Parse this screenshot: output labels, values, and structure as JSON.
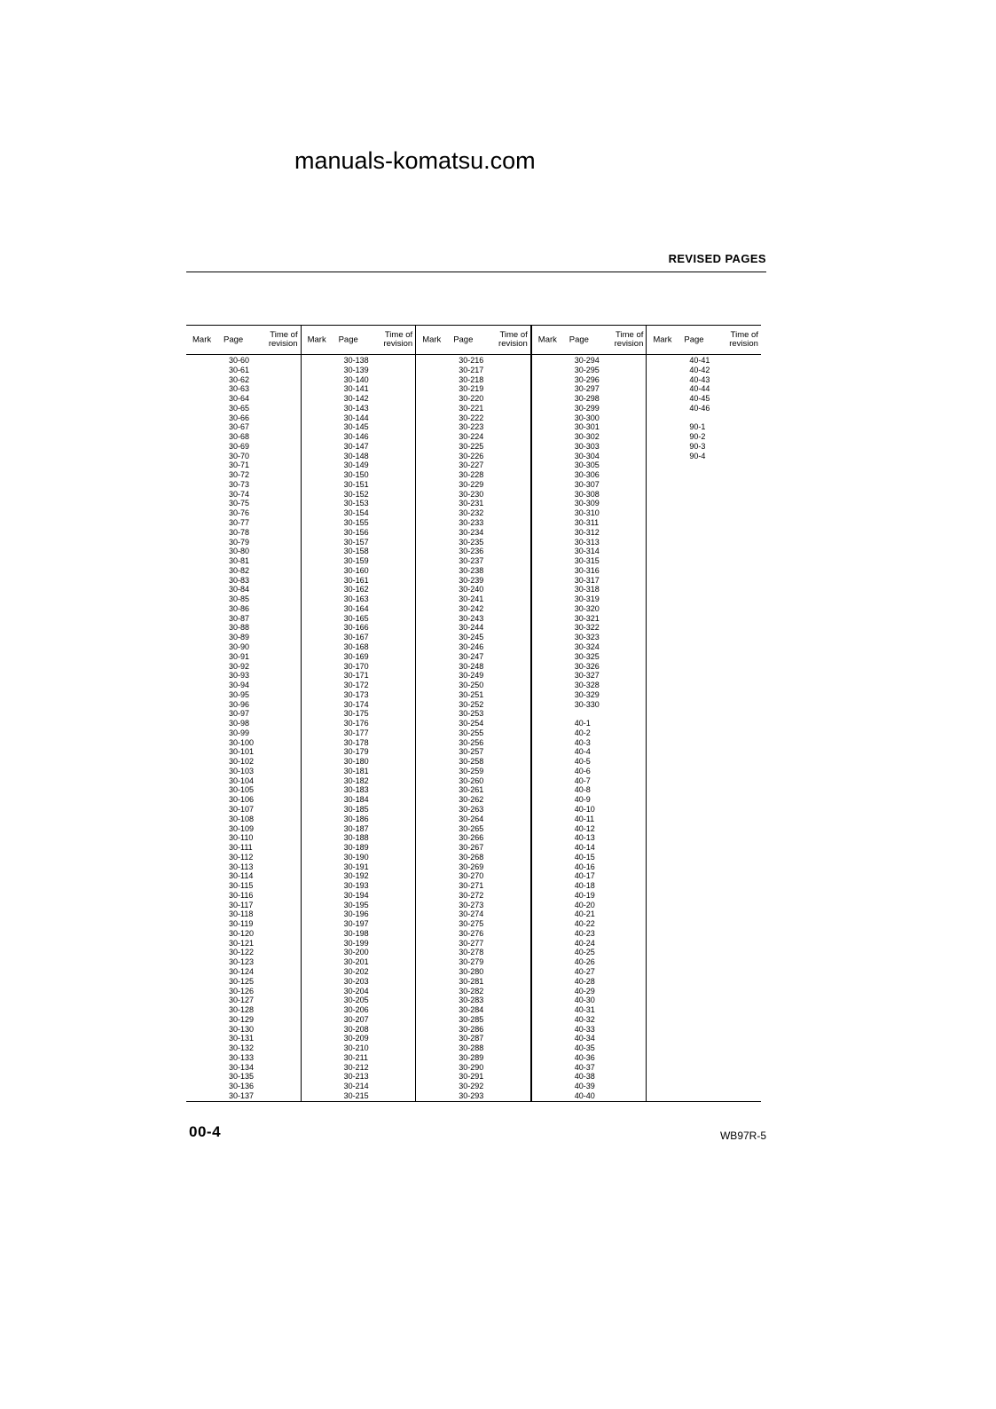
{
  "watermark": {
    "text": "manuals-komatsu.com"
  },
  "header": {
    "title": "REVISED PAGES"
  },
  "table": {
    "column_headers": {
      "mark": "Mark",
      "page": "Page",
      "time_line1": "Time of",
      "time_line2": "revision"
    },
    "columns": [
      {
        "pages": [
          "30-60",
          "30-61",
          "30-62",
          "30-63",
          "30-64",
          "30-65",
          "30-66",
          "30-67",
          "30-68",
          "30-69",
          "30-70",
          "30-71",
          "30-72",
          "30-73",
          "30-74",
          "30-75",
          "30-76",
          "30-77",
          "30-78",
          "30-79",
          "30-80",
          "30-81",
          "30-82",
          "30-83",
          "30-84",
          "30-85",
          "30-86",
          "30-87",
          "30-88",
          "30-89",
          "30-90",
          "30-91",
          "30-92",
          "30-93",
          "30-94",
          "30-95",
          "30-96",
          "30-97",
          "30-98",
          "30-99",
          "30-100",
          "30-101",
          "30-102",
          "30-103",
          "30-104",
          "30-105",
          "30-106",
          "30-107",
          "30-108",
          "30-109",
          "30-110",
          "30-111",
          "30-112",
          "30-113",
          "30-114",
          "30-115",
          "30-116",
          "30-117",
          "30-118",
          "30-119",
          "30-120",
          "30-121",
          "30-122",
          "30-123",
          "30-124",
          "30-125",
          "30-126",
          "30-127",
          "30-128",
          "30-129",
          "30-130",
          "30-131",
          "30-132",
          "30-133",
          "30-134",
          "30-135",
          "30-136",
          "30-137"
        ]
      },
      {
        "pages": [
          "30-138",
          "30-139",
          "30-140",
          "30-141",
          "30-142",
          "30-143",
          "30-144",
          "30-145",
          "30-146",
          "30-147",
          "30-148",
          "30-149",
          "30-150",
          "30-151",
          "30-152",
          "30-153",
          "30-154",
          "30-155",
          "30-156",
          "30-157",
          "30-158",
          "30-159",
          "30-160",
          "30-161",
          "30-162",
          "30-163",
          "30-164",
          "30-165",
          "30-166",
          "30-167",
          "30-168",
          "30-169",
          "30-170",
          "30-171",
          "30-172",
          "30-173",
          "30-174",
          "30-175",
          "30-176",
          "30-177",
          "30-178",
          "30-179",
          "30-180",
          "30-181",
          "30-182",
          "30-183",
          "30-184",
          "30-185",
          "30-186",
          "30-187",
          "30-188",
          "30-189",
          "30-190",
          "30-191",
          "30-192",
          "30-193",
          "30-194",
          "30-195",
          "30-196",
          "30-197",
          "30-198",
          "30-199",
          "30-200",
          "30-201",
          "30-202",
          "30-203",
          "30-204",
          "30-205",
          "30-206",
          "30-207",
          "30-208",
          "30-209",
          "30-210",
          "30-211",
          "30-212",
          "30-213",
          "30-214",
          "30-215"
        ]
      },
      {
        "pages": [
          "30-216",
          "30-217",
          "30-218",
          "30-219",
          "30-220",
          "30-221",
          "30-222",
          "30-223",
          "30-224",
          "30-225",
          "30-226",
          "30-227",
          "30-228",
          "30-229",
          "30-230",
          "30-231",
          "30-232",
          "30-233",
          "30-234",
          "30-235",
          "30-236",
          "30-237",
          "30-238",
          "30-239",
          "30-240",
          "30-241",
          "30-242",
          "30-243",
          "30-244",
          "30-245",
          "30-246",
          "30-247",
          "30-248",
          "30-249",
          "30-250",
          "30-251",
          "30-252",
          "30-253",
          "30-254",
          "30-255",
          "30-256",
          "30-257",
          "30-258",
          "30-259",
          "30-260",
          "30-261",
          "30-262",
          "30-263",
          "30-264",
          "30-265",
          "30-266",
          "30-267",
          "30-268",
          "30-269",
          "30-270",
          "30-271",
          "30-272",
          "30-273",
          "30-274",
          "30-275",
          "30-276",
          "30-277",
          "30-278",
          "30-279",
          "30-280",
          "30-281",
          "30-282",
          "30-283",
          "30-284",
          "30-285",
          "30-286",
          "30-287",
          "30-288",
          "30-289",
          "30-290",
          "30-291",
          "30-292",
          "30-293"
        ]
      },
      {
        "pages": [
          "30-294",
          "30-295",
          "30-296",
          "30-297",
          "30-298",
          "30-299",
          "30-300",
          "30-301",
          "30-302",
          "30-303",
          "30-304",
          "30-305",
          "30-306",
          "30-307",
          "30-308",
          "30-309",
          "30-310",
          "30-311",
          "30-312",
          "30-313",
          "30-314",
          "30-315",
          "30-316",
          "30-317",
          "30-318",
          "30-319",
          "30-320",
          "30-321",
          "30-322",
          "30-323",
          "30-324",
          "30-325",
          "30-326",
          "30-327",
          "30-328",
          "30-329",
          "30-330",
          "",
          "40-1",
          "40-2",
          "40-3",
          "40-4",
          "40-5",
          "40-6",
          "40-7",
          "40-8",
          "40-9",
          "40-10",
          "40-11",
          "40-12",
          "40-13",
          "40-14",
          "40-15",
          "40-16",
          "40-17",
          "40-18",
          "40-19",
          "40-20",
          "40-21",
          "40-22",
          "40-23",
          "40-24",
          "40-25",
          "40-26",
          "40-27",
          "40-28",
          "40-29",
          "40-30",
          "40-31",
          "40-32",
          "40-33",
          "40-34",
          "40-35",
          "40-36",
          "40-37",
          "40-38",
          "40-39",
          "40-40"
        ]
      },
      {
        "pages": [
          "40-41",
          "40-42",
          "40-43",
          "40-44",
          "40-45",
          "40-46",
          "",
          "90-1",
          "90-2",
          "90-3",
          "90-4"
        ]
      }
    ]
  },
  "footer": {
    "page_number": "00-4",
    "doc_code": "WB97R-5"
  }
}
